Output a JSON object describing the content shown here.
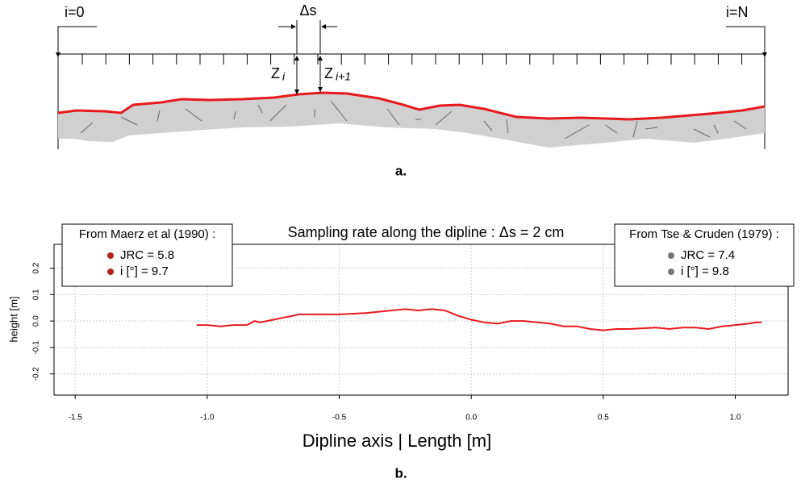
{
  "diagram": {
    "labels": {
      "start": "i=0",
      "end": "i=N",
      "step": "Δs",
      "z": "Z",
      "z_sub": "i",
      "z_next": "Z",
      "z_next_sub": "i+1"
    },
    "caption": "a."
  },
  "chart_data": {
    "type": "line",
    "title": "Sampling rate along the dipline  : Δs = 2 cm",
    "x_label": "Dipline axis | Length [m]",
    "y_label": "height  [m]",
    "caption": "b.",
    "color": "#e8191c",
    "grid": true,
    "x": [
      -1.04,
      -1.0,
      -0.95,
      -0.9,
      -0.85,
      -0.82,
      -0.8,
      -0.75,
      -0.7,
      -0.65,
      -0.6,
      -0.5,
      -0.4,
      -0.3,
      -0.25,
      -0.2,
      -0.15,
      -0.1,
      -0.05,
      0.0,
      0.05,
      0.1,
      0.15,
      0.2,
      0.3,
      0.35,
      0.4,
      0.45,
      0.5,
      0.55,
      0.6,
      0.7,
      0.75,
      0.8,
      0.85,
      0.9,
      0.95,
      1.0,
      1.05,
      1.08,
      1.1
    ],
    "values": [
      -0.015,
      -0.015,
      -0.02,
      -0.015,
      -0.015,
      0.0,
      -0.005,
      0.005,
      0.015,
      0.025,
      0.025,
      0.025,
      0.03,
      0.04,
      0.045,
      0.04,
      0.045,
      0.04,
      0.02,
      0.005,
      -0.005,
      -0.01,
      0.0,
      0.0,
      -0.01,
      -0.02,
      -0.02,
      -0.03,
      -0.035,
      -0.03,
      -0.03,
      -0.025,
      -0.03,
      -0.025,
      -0.025,
      -0.03,
      -0.02,
      -0.015,
      -0.01,
      -0.005,
      -0.005
    ],
    "xlim": [
      -1.58,
      1.2
    ],
    "ylim": [
      -0.28,
      0.29
    ],
    "xticks": [
      -1.5,
      {
        "value": -1.0,
        "label": "-1.0"
      },
      -0.5,
      {
        "value": 0.0,
        "label": "0.0"
      },
      0.5,
      {
        "value": 1.0,
        "label": "1.0"
      }
    ],
    "yticks": [
      -0.2,
      -0.1,
      {
        "value": 0.0,
        "label": "0.0"
      },
      0.1,
      0.2
    ],
    "legends": [
      {
        "title": "From Maerz et al (1990) :",
        "color": "#b22222",
        "entries": [
          "JRC =  5.8",
          "i [°] = 9.7"
        ]
      },
      {
        "title": "From Tse & Cruden (1979) :",
        "color": "#777777",
        "entries": [
          "JRC =  7.4",
          "i [°] = 9.8"
        ]
      }
    ]
  }
}
